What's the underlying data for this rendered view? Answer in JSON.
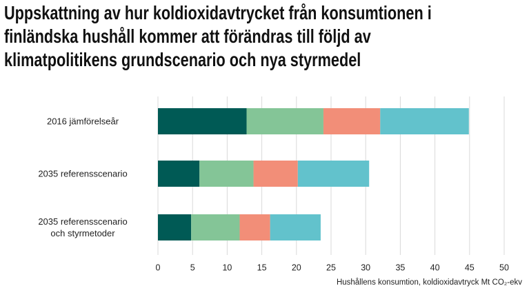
{
  "chart_data": {
    "type": "stacked-barh",
    "title": "Uppskattning av hur koldioxidavtrycket från konsumtionen i\nfinländska hushåll kommer att förändras till följd av\nklimatpolitikens grundscenario och nya styrmedel",
    "x_label": "Hushållens konsumtion, koldioxidavtryck Mt CO₂-ekv",
    "categories": [
      "2016 jämförelseår",
      "2035 referensscenario",
      "2035 referensscenario\noch styrmetoder"
    ],
    "series": [
      {
        "color": "#005a55",
        "values": [
          12.8,
          6.0,
          4.8
        ]
      },
      {
        "color": "#84c597",
        "values": [
          11.1,
          7.8,
          7.0
        ]
      },
      {
        "color": "#f28e78",
        "values": [
          8.2,
          6.4,
          4.4
        ]
      },
      {
        "color": "#62c2cc",
        "values": [
          12.8,
          10.3,
          7.3
        ]
      }
    ],
    "xlim": [
      0,
      50
    ],
    "xticks": [
      0,
      5,
      10,
      15,
      20,
      25,
      30,
      35,
      40,
      45,
      50
    ],
    "grid": true
  }
}
